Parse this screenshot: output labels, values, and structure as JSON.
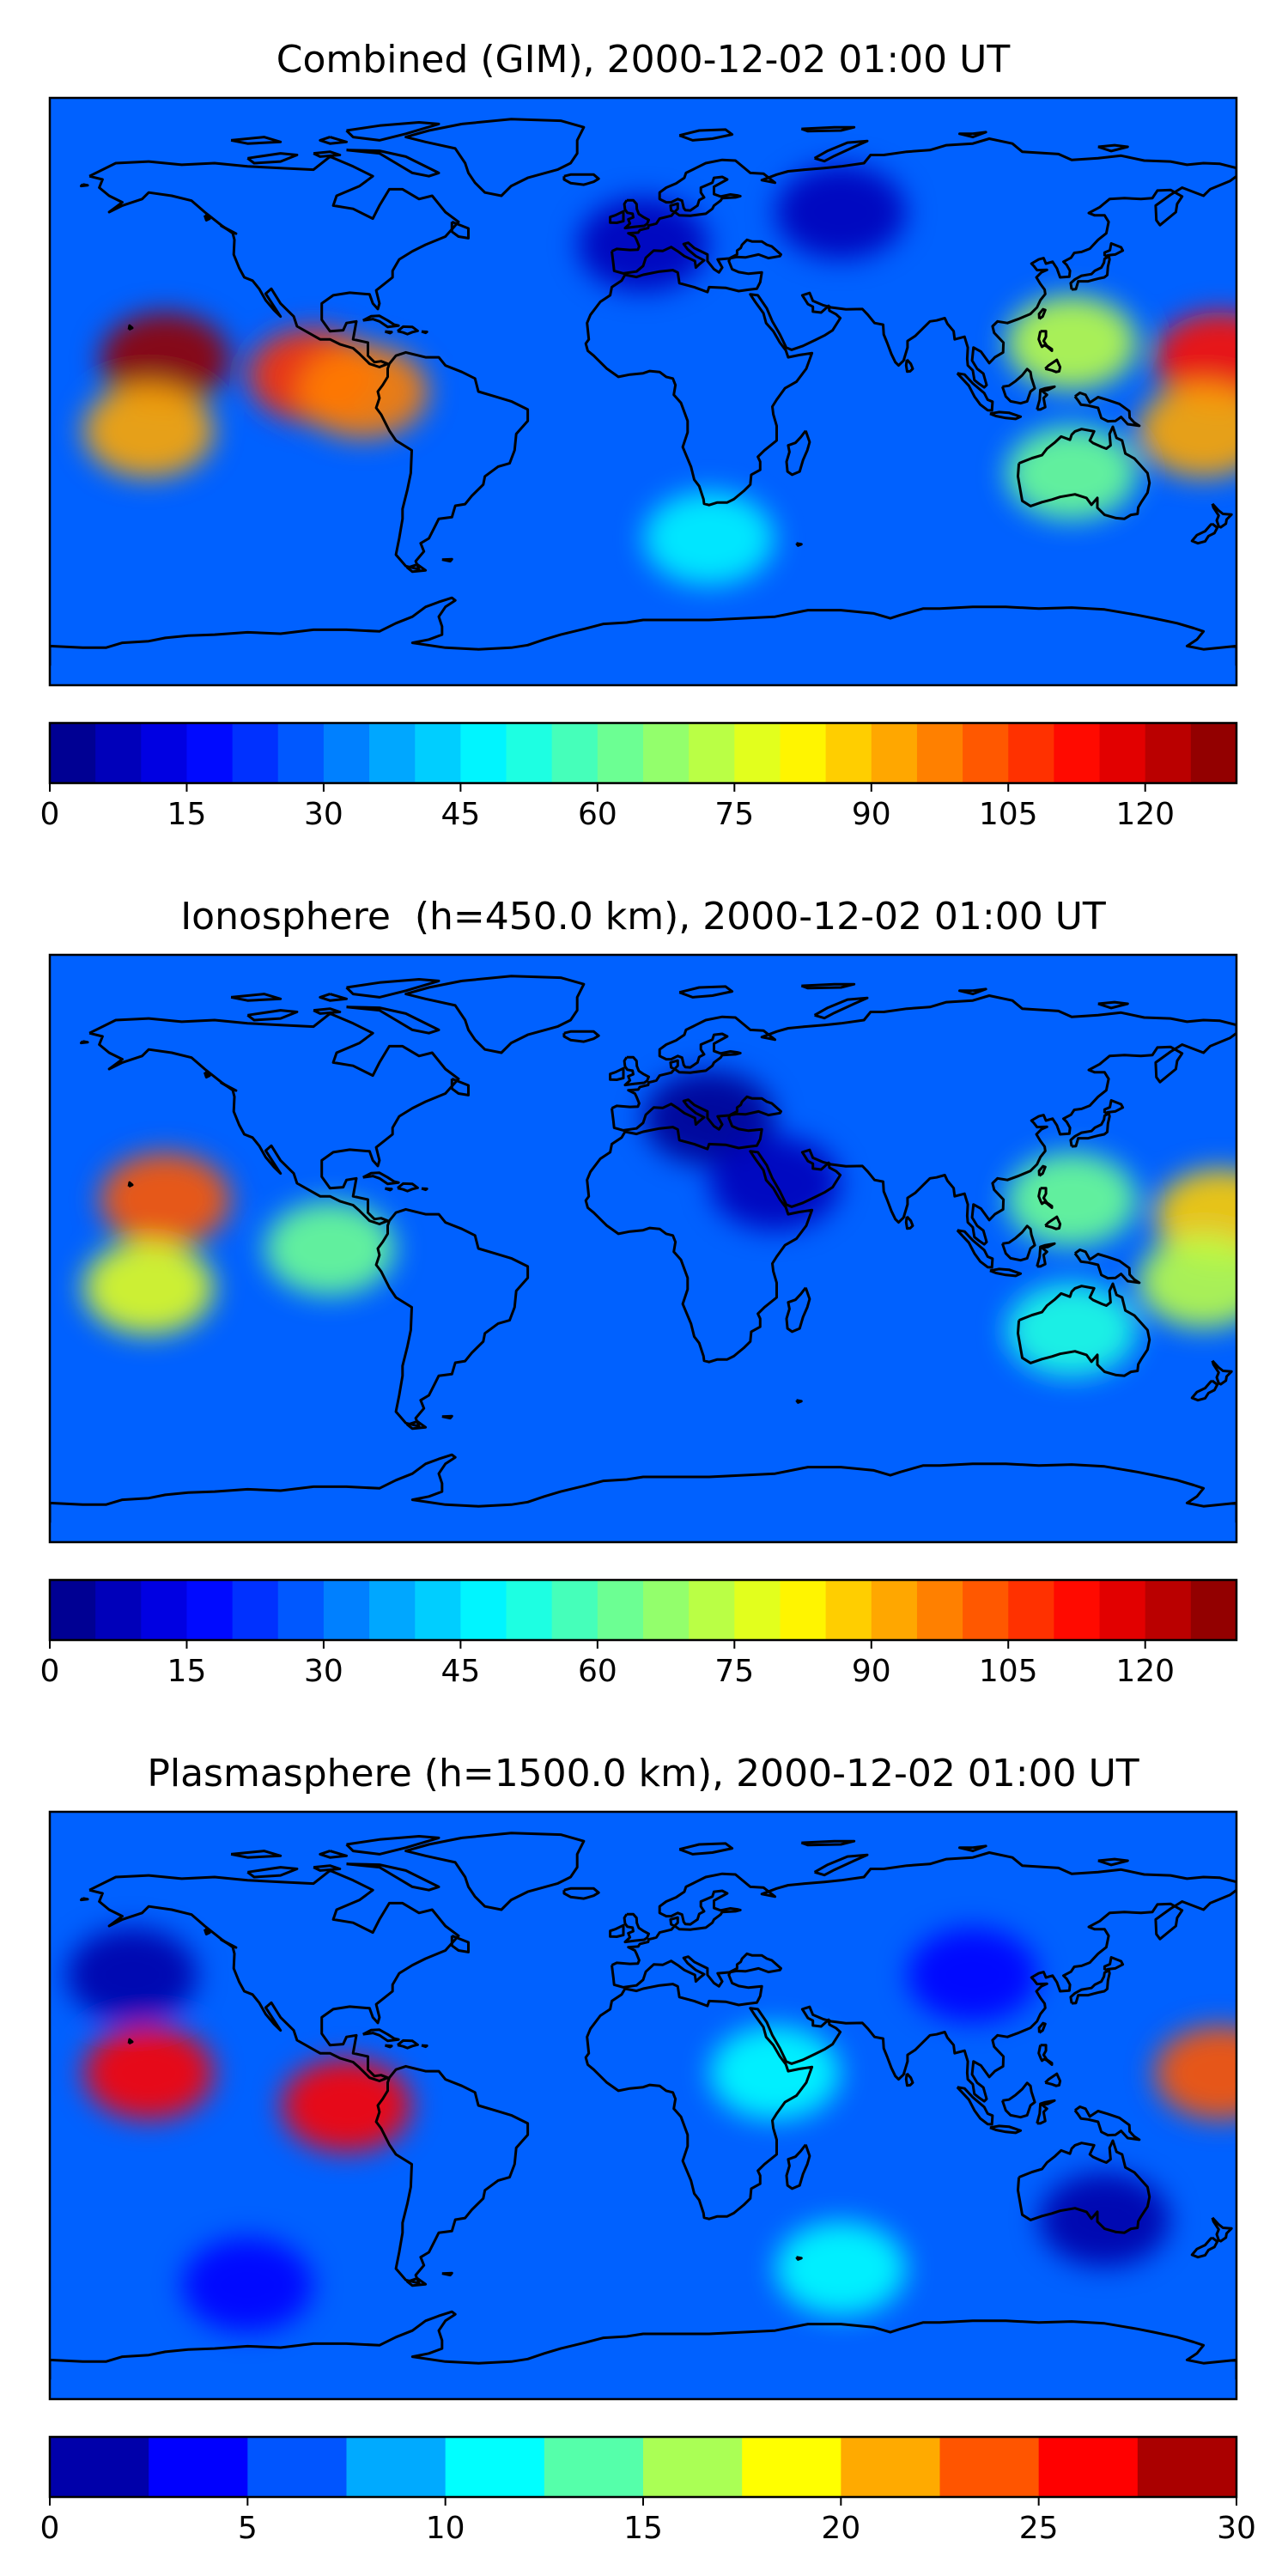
{
  "chart_data": [
    {
      "type": "heatmap",
      "title": "Combined (GIM), 2000-12-02 01:00 UT",
      "colorbar": {
        "vmin": 0,
        "vmax": 130,
        "step": 5,
        "ticks": [
          0,
          15,
          30,
          45,
          60,
          75,
          90,
          105,
          120
        ]
      },
      "colormap": "jet",
      "projection": "plate-carree world map with coastlines",
      "extent": {
        "lon": [
          -180,
          180
        ],
        "lat": [
          -90,
          90
        ]
      },
      "peaks": [
        {
          "lon": -145,
          "lat": 10,
          "value": 125
        },
        {
          "lon": -150,
          "lat": -12,
          "value": 92
        },
        {
          "lon": -100,
          "lat": 5,
          "value": 108
        },
        {
          "lon": -85,
          "lat": 0,
          "value": 95
        },
        {
          "lon": 175,
          "lat": 10,
          "value": 110
        },
        {
          "lon": 170,
          "lat": -12,
          "value": 90
        },
        {
          "lon": 130,
          "lat": 15,
          "value": 72
        },
        {
          "lon": 130,
          "lat": -25,
          "value": 60
        },
        {
          "lon": 20,
          "lat": -45,
          "value": 48
        },
        {
          "lon": 0,
          "lat": 45,
          "value": 8
        },
        {
          "lon": 60,
          "lat": 55,
          "value": 8
        }
      ]
    },
    {
      "type": "heatmap",
      "title": "Ionosphere  (h=450.0 km), 2000-12-02 01:00 UT",
      "colorbar": {
        "vmin": 0,
        "vmax": 130,
        "step": 5,
        "ticks": [
          0,
          15,
          30,
          45,
          60,
          75,
          90,
          105,
          120
        ]
      },
      "colormap": "jet",
      "projection": "plate-carree world map with coastlines",
      "extent": {
        "lon": [
          -180,
          180
        ],
        "lat": [
          -90,
          90
        ]
      },
      "peaks": [
        {
          "lon": -145,
          "lat": 15,
          "value": 100
        },
        {
          "lon": -150,
          "lat": -12,
          "value": 78
        },
        {
          "lon": -95,
          "lat": 0,
          "value": 62
        },
        {
          "lon": 175,
          "lat": 10,
          "value": 85
        },
        {
          "lon": 170,
          "lat": -10,
          "value": 70
        },
        {
          "lon": 130,
          "lat": 15,
          "value": 60
        },
        {
          "lon": 130,
          "lat": -25,
          "value": 50
        },
        {
          "lon": 20,
          "lat": 40,
          "value": 3
        },
        {
          "lon": 40,
          "lat": 20,
          "value": 5
        }
      ]
    },
    {
      "type": "heatmap",
      "title": "Plasmasphere (h=1500.0 km), 2000-12-02 01:00 UT",
      "colorbar": {
        "vmin": 0,
        "vmax": 30,
        "step": 2.5,
        "ticks": [
          0,
          5,
          10,
          15,
          20,
          25,
          30
        ]
      },
      "colormap": "jet",
      "projection": "plate-carree world map with coastlines",
      "extent": {
        "lon": [
          -180,
          180
        ],
        "lat": [
          -90,
          90
        ]
      },
      "peaks": [
        {
          "lon": -150,
          "lat": 10,
          "value": 26
        },
        {
          "lon": -90,
          "lat": 0,
          "value": 27
        },
        {
          "lon": 175,
          "lat": 10,
          "value": 23
        },
        {
          "lon": 40,
          "lat": 10,
          "value": 12
        },
        {
          "lon": 60,
          "lat": -50,
          "value": 12
        },
        {
          "lon": 140,
          "lat": -35,
          "value": 2
        },
        {
          "lon": -155,
          "lat": 40,
          "value": 2
        },
        {
          "lon": 100,
          "lat": 40,
          "value": 4
        },
        {
          "lon": -120,
          "lat": -55,
          "value": 4
        }
      ]
    }
  ]
}
